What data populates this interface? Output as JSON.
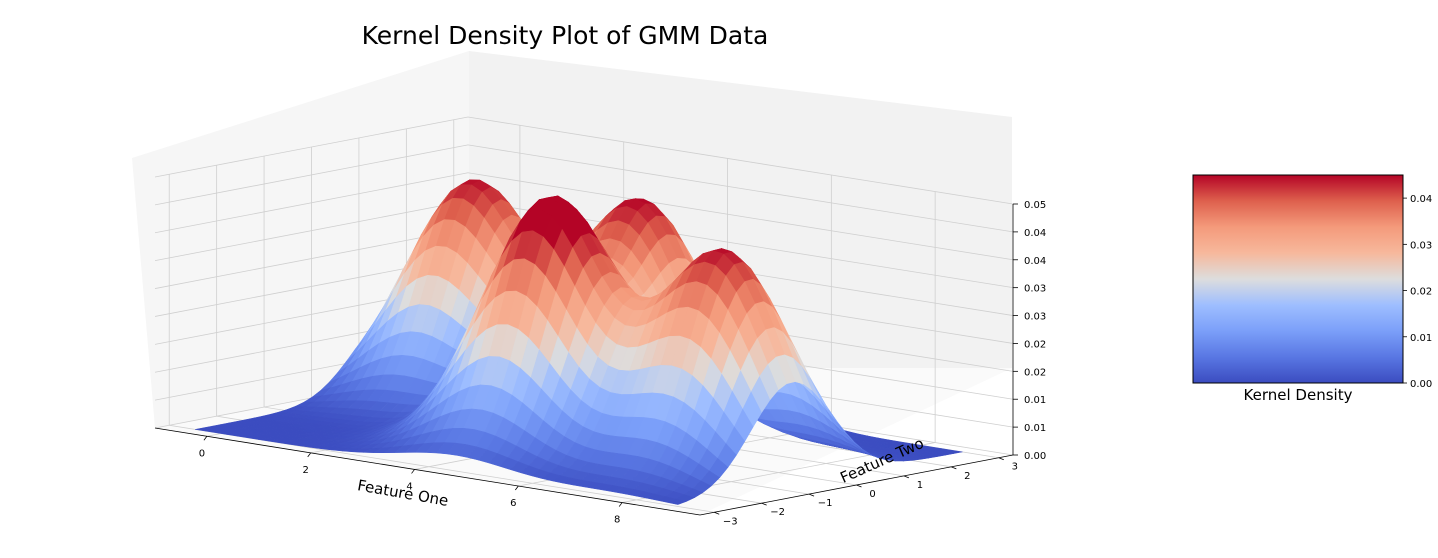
{
  "chart_data": {
    "type": "surface",
    "title": "Kernel Density Plot of GMM Data",
    "xlabel": "Feature One",
    "ylabel": "Feature Two",
    "zlabel": "",
    "colormap": "coolwarm",
    "xlim": [
      -1,
      9.5
    ],
    "ylim": [
      -3.3,
      3.3
    ],
    "zlim": [
      0,
      0.05
    ],
    "x_ticks": [
      "0",
      "2",
      "4",
      "6",
      "8"
    ],
    "y_ticks": [
      "−3",
      "−2",
      "−1",
      "0",
      "1",
      "2",
      "3"
    ],
    "z_ticks": [
      "0.00",
      "0.01",
      "0.01",
      "0.02",
      "0.02",
      "0.03",
      "0.03",
      "0.04",
      "0.04",
      "0.05"
    ],
    "grid": true,
    "components": [
      {
        "x": 1.0,
        "y": 1.2,
        "peak": 0.044
      },
      {
        "x": 4.0,
        "y": 1.5,
        "peak": 0.044
      },
      {
        "x": 4.5,
        "y": -1.0,
        "peak": 0.05
      },
      {
        "x": 7.5,
        "y": -0.6,
        "peak": 0.044
      }
    ],
    "colorbar": {
      "label": "Kernel Density",
      "ticks": [
        "0.00",
        "0.01",
        "0.02",
        "0.03",
        "0.04"
      ],
      "range": [
        0,
        0.045
      ]
    }
  },
  "colors": {
    "low": "#3b4cc0",
    "mid": "#dddddd",
    "high": "#b40426",
    "pane_back": "#f2f2f2",
    "pane_side": "#f6f6f6",
    "grid": "#cfcfcf"
  }
}
